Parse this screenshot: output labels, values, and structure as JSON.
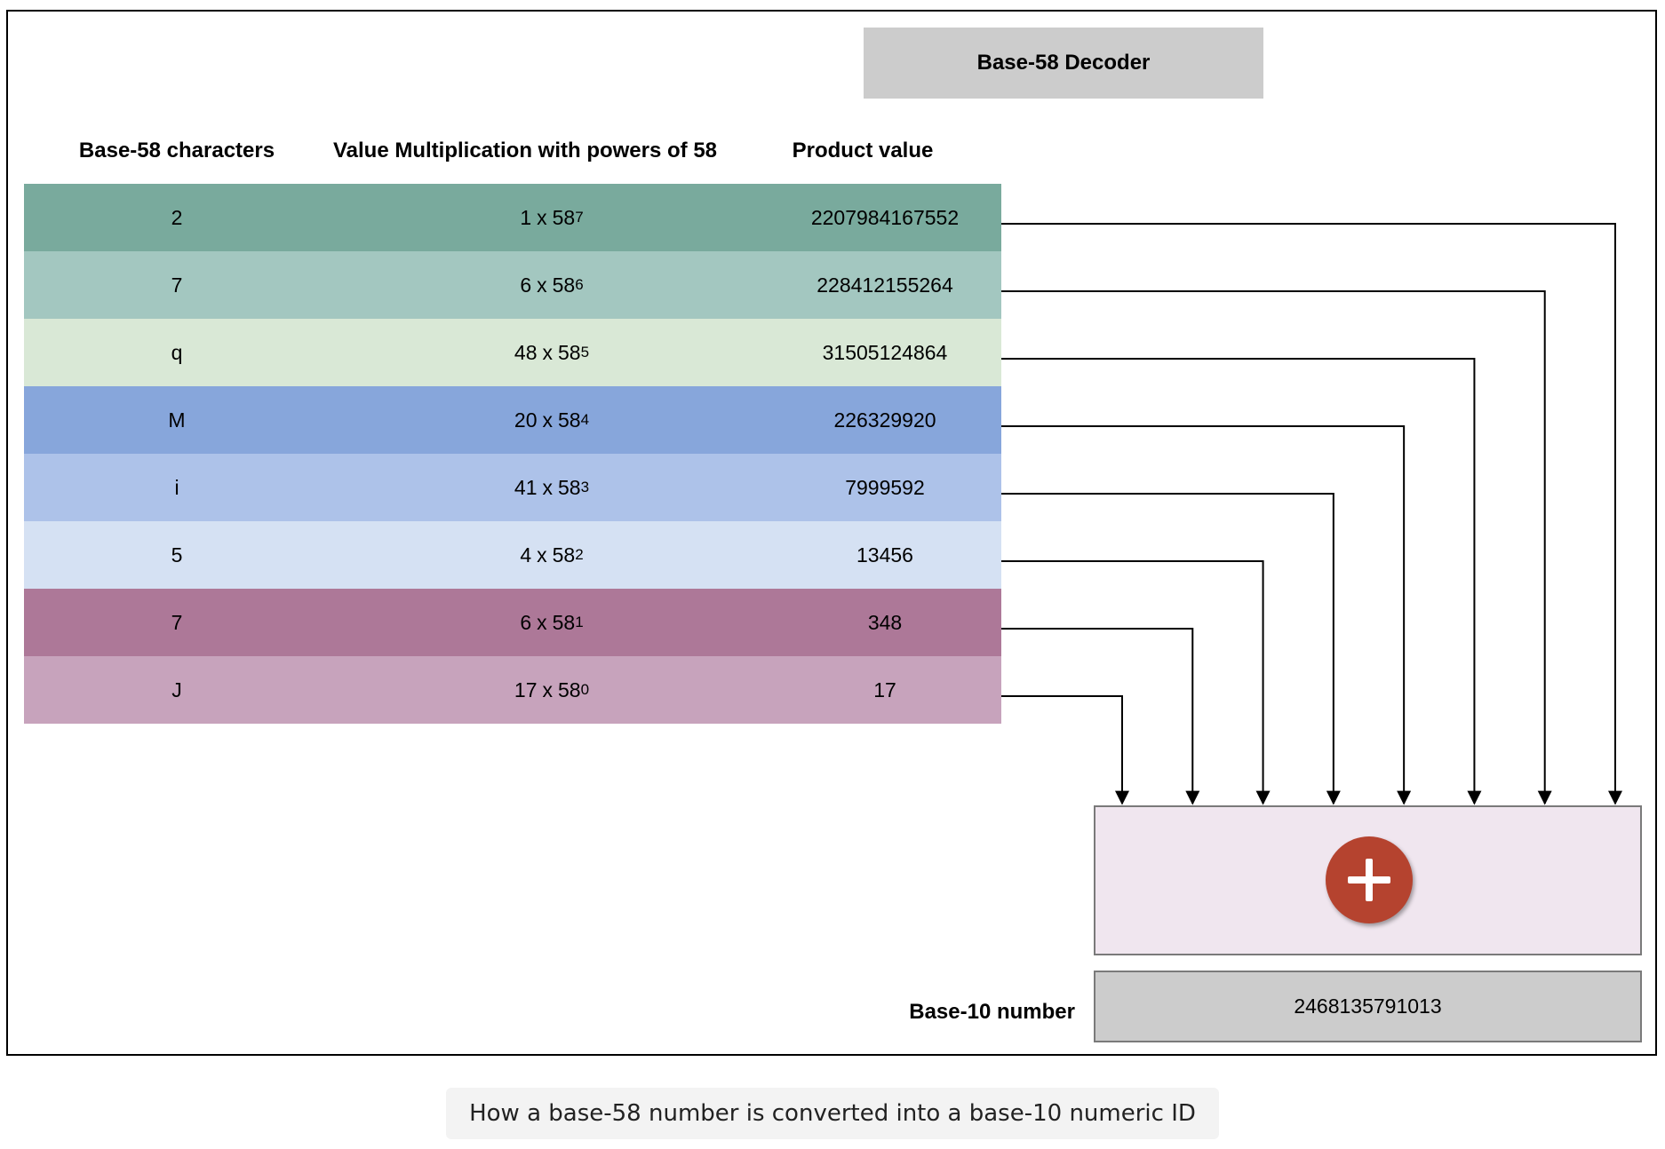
{
  "title": "Base-58 Decoder",
  "headers": {
    "characters": "Base-58 characters",
    "multiplication": "Value Multiplication with powers of 58",
    "product": "Product value"
  },
  "rows": [
    {
      "char": "2",
      "value": "1",
      "base": "58",
      "power": "7",
      "product": "2207984167552",
      "color": "#79aa9d"
    },
    {
      "char": "7",
      "value": "6",
      "base": "58",
      "power": "6",
      "product": "228412155264",
      "color": "#a3c7c0"
    },
    {
      "char": "q",
      "value": "48",
      "base": "58",
      "power": "5",
      "product": "31505124864",
      "color": "#d9e8d6"
    },
    {
      "char": "M",
      "value": "20",
      "base": "58",
      "power": "4",
      "product": "226329920",
      "color": "#87a6db"
    },
    {
      "char": "i",
      "value": "41",
      "base": "58",
      "power": "3",
      "product": "7999592",
      "color": "#adc2e9"
    },
    {
      "char": "5",
      "value": "4",
      "base": "58",
      "power": "2",
      "product": "13456",
      "color": "#d5e1f3"
    },
    {
      "char": "7",
      "value": "6",
      "base": "58",
      "power": "1",
      "product": "348",
      "color": "#ad7898"
    },
    {
      "char": "J",
      "value": "17",
      "base": "58",
      "power": "0",
      "product": "17",
      "color": "#c7a3bc"
    }
  ],
  "times_symbol": "x",
  "sum_operator": "plus-icon",
  "result": {
    "label": "Base-10 number",
    "value": "2468135791013"
  },
  "caption": "How a base-58 number is converted into a base-10 numeric ID"
}
